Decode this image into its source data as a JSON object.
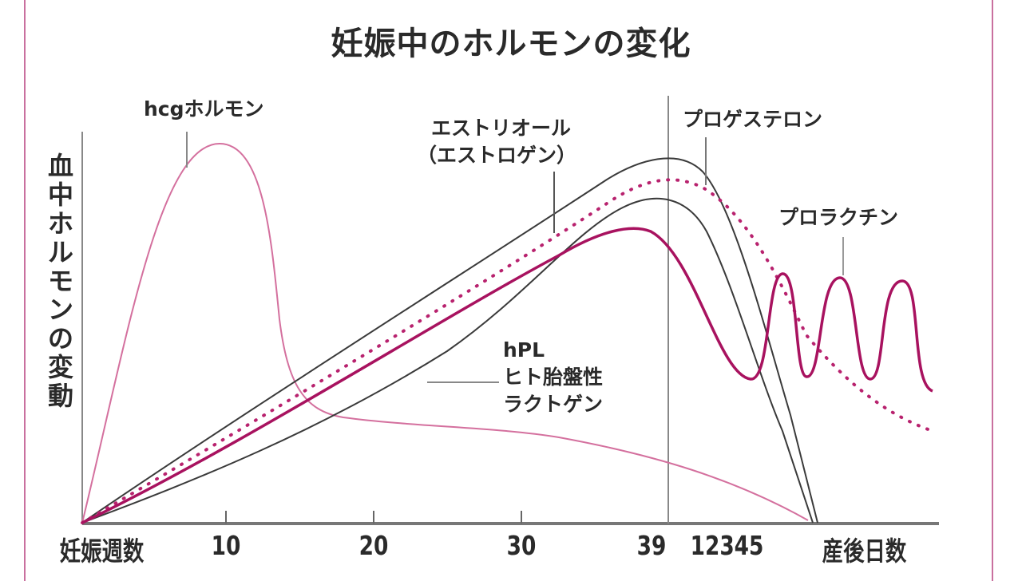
{
  "chart_data": {
    "type": "line",
    "title": "妊娠中のホルモンの変化",
    "ylabel": "血中ホルモンの変動",
    "xlabel_left": "妊娠週数",
    "xlabel_right": "産後日数",
    "x_ticks_weeks": [
      "10",
      "20",
      "30",
      "39"
    ],
    "x_ticks_days": "12345",
    "grid": false,
    "series": [
      {
        "name": "hcgホルモン",
        "color": "#d4709e",
        "style": "solid-thin"
      },
      {
        "name": "エストリオール（エストロゲン）",
        "color": "#3a3a3a",
        "style": "solid-thin"
      },
      {
        "name": "プロゲステロン",
        "color": "#b8226e",
        "style": "dotted"
      },
      {
        "name": "hPL ヒト胎盤性ラクトゲン",
        "color": "#3a3a3a",
        "style": "solid-thin"
      },
      {
        "name": "プロラクチン",
        "color": "#a8125f",
        "style": "solid-thick"
      }
    ],
    "labels": {
      "hcg": "hcgホルモン",
      "estriol_1": "エストリオール",
      "estriol_2": "（エストロゲン）",
      "progesterone": "プロゲステロン",
      "prolactin": "プロラクチン",
      "hpl_1": "hPL",
      "hpl_2": "ヒト胎盤性",
      "hpl_3": "ラクトゲン"
    }
  }
}
